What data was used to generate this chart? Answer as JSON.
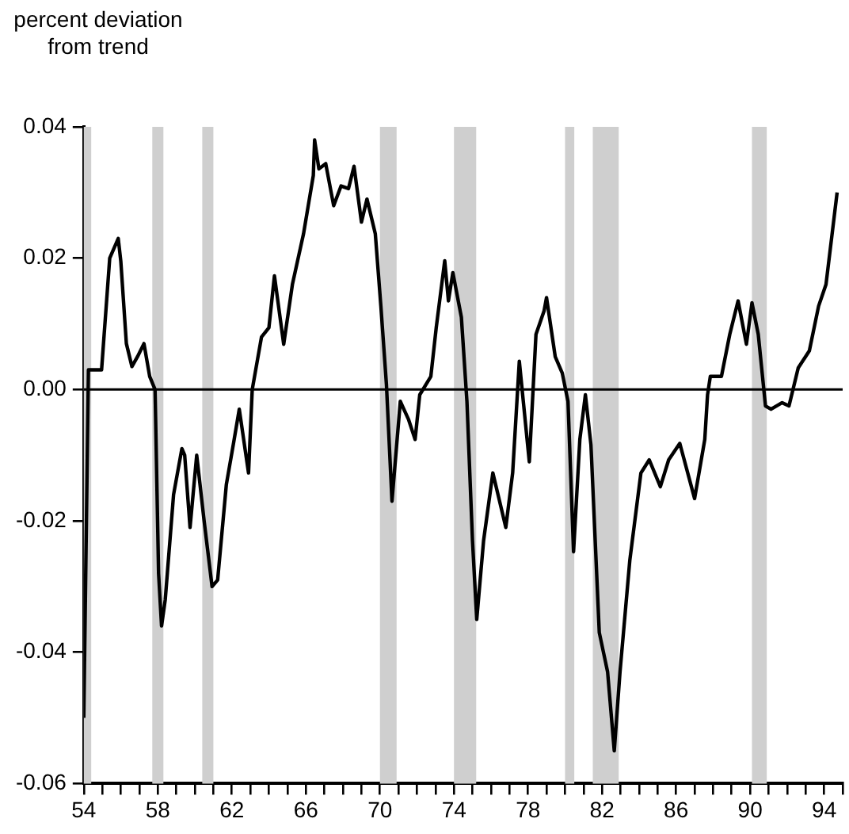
{
  "chart_data": {
    "type": "line",
    "ylabel": "percent deviation from trend",
    "x": [
      54.0,
      54.25,
      54.57,
      54.96,
      55.4,
      55.86,
      56.0,
      56.3,
      56.6,
      56.9,
      57.25,
      57.56,
      57.85,
      58.04,
      58.2,
      58.4,
      58.85,
      59.3,
      59.45,
      59.74,
      60.1,
      60.5,
      60.93,
      61.23,
      61.7,
      62.1,
      62.4,
      62.9,
      63.1,
      63.6,
      64.0,
      64.3,
      64.8,
      65.27,
      65.87,
      66.4,
      66.47,
      66.7,
      67.07,
      67.5,
      67.9,
      68.3,
      68.6,
      69.0,
      69.3,
      69.75,
      70.05,
      70.35,
      70.65,
      71.1,
      71.55,
      71.9,
      72.15,
      72.75,
      73.04,
      73.5,
      73.7,
      73.94,
      74.4,
      74.7,
      75.0,
      75.23,
      75.6,
      76.1,
      76.8,
      77.17,
      77.53,
      78.07,
      78.43,
      78.87,
      79.0,
      79.47,
      79.85,
      80.16,
      80.46,
      80.8,
      81.1,
      81.4,
      81.85,
      82.3,
      82.66,
      82.97,
      83.5,
      84.1,
      84.55,
      85.15,
      85.6,
      86.2,
      87.0,
      87.55,
      87.7,
      87.85,
      88.45,
      88.9,
      89.35,
      89.8,
      90.1,
      90.44,
      90.83,
      91.13,
      91.73,
      92.1,
      92.6,
      93.2,
      93.7,
      94.1,
      94.7
    ],
    "values": [
      -0.05,
      0.003,
      0.003,
      0.003,
      0.02,
      0.023,
      0.0195,
      0.007,
      0.0035,
      0.005,
      0.007,
      0.002,
      0.0,
      -0.028,
      -0.036,
      -0.032,
      -0.016,
      -0.009,
      -0.01,
      -0.021,
      -0.01,
      -0.02,
      -0.03,
      -0.029,
      -0.0145,
      -0.008,
      -0.003,
      -0.0127,
      0.0,
      0.008,
      0.0094,
      0.0173,
      0.0069,
      0.016,
      0.0237,
      0.0326,
      0.038,
      0.0336,
      0.0344,
      0.028,
      0.031,
      0.0306,
      0.034,
      0.0255,
      0.029,
      0.0237,
      0.0127,
      0.0008,
      -0.017,
      -0.0018,
      -0.0046,
      -0.0076,
      -0.0008,
      0.002,
      0.0094,
      0.0196,
      0.0135,
      0.0178,
      0.011,
      -0.0018,
      -0.023,
      -0.035,
      -0.023,
      -0.0127,
      -0.021,
      -0.0127,
      0.0043,
      -0.011,
      0.0084,
      0.012,
      0.014,
      0.005,
      0.0025,
      -0.0018,
      -0.0247,
      -0.0076,
      -0.0008,
      -0.0084,
      -0.037,
      -0.043,
      -0.055,
      -0.043,
      -0.026,
      -0.0127,
      -0.0107,
      -0.0148,
      -0.0107,
      -0.0082,
      -0.0166,
      -0.0076,
      -0.0008,
      0.002,
      0.002,
      0.0084,
      0.0135,
      0.0069,
      0.0132,
      0.0084,
      -0.0025,
      -0.003,
      -0.002,
      -0.0025,
      0.0033,
      0.0059,
      0.0127,
      0.016,
      0.03
    ],
    "color": "#000000",
    "marker": "none",
    "line_style": "solid",
    "grid": false,
    "legend": false,
    "xlim": [
      54,
      95
    ],
    "xticks": [
      {
        "value": 54,
        "label": "54"
      },
      {
        "value": 55,
        "label": null
      },
      {
        "value": 56,
        "label": null
      },
      {
        "value": 57,
        "label": null
      },
      {
        "value": 58,
        "label": "58"
      },
      {
        "value": 59,
        "label": null
      },
      {
        "value": 60,
        "label": null
      },
      {
        "value": 61,
        "label": null
      },
      {
        "value": 62,
        "label": "62"
      },
      {
        "value": 63,
        "label": null
      },
      {
        "value": 64,
        "label": null
      },
      {
        "value": 65,
        "label": null
      },
      {
        "value": 66,
        "label": "66"
      },
      {
        "value": 67,
        "label": null
      },
      {
        "value": 68,
        "label": null
      },
      {
        "value": 69,
        "label": null
      },
      {
        "value": 70,
        "label": "70"
      },
      {
        "value": 71,
        "label": null
      },
      {
        "value": 72,
        "label": null
      },
      {
        "value": 73,
        "label": null
      },
      {
        "value": 74,
        "label": "74"
      },
      {
        "value": 75,
        "label": null
      },
      {
        "value": 76,
        "label": null
      },
      {
        "value": 77,
        "label": null
      },
      {
        "value": 78,
        "label": "78"
      },
      {
        "value": 79,
        "label": null
      },
      {
        "value": 80,
        "label": null
      },
      {
        "value": 81,
        "label": null
      },
      {
        "value": 82,
        "label": "82"
      },
      {
        "value": 83,
        "label": null
      },
      {
        "value": 84,
        "label": null
      },
      {
        "value": 85,
        "label": null
      },
      {
        "value": 86,
        "label": "86"
      },
      {
        "value": 87,
        "label": null
      },
      {
        "value": 88,
        "label": null
      },
      {
        "value": 89,
        "label": null
      },
      {
        "value": 90,
        "label": "90"
      },
      {
        "value": 91,
        "label": null
      },
      {
        "value": 92,
        "label": null
      },
      {
        "value": 93,
        "label": null
      },
      {
        "value": 94,
        "label": "94"
      },
      {
        "value": 95,
        "label": null
      }
    ],
    "ylim": [
      -0.06,
      0.04
    ],
    "yticks": [
      {
        "value": -0.06,
        "label": "-0.06"
      },
      {
        "value": -0.04,
        "label": "-0.04"
      },
      {
        "value": -0.02,
        "label": "-0.02"
      },
      {
        "value": 0,
        "label": "0.00"
      },
      {
        "value": 0.02,
        "label": "0.02"
      },
      {
        "value": 0.04,
        "label": "0.04"
      }
    ],
    "ref_lines": [
      {
        "axis": "y",
        "value": 0,
        "color": "#000000",
        "line_style": "solid"
      }
    ],
    "bands": [
      {
        "axis": "x",
        "from": 54.0,
        "to": 54.4,
        "color": "#cfcfcf"
      },
      {
        "axis": "x",
        "from": 57.7,
        "to": 58.3,
        "color": "#cfcfcf"
      },
      {
        "axis": "x",
        "from": 60.4,
        "to": 61.0,
        "color": "#cfcfcf"
      },
      {
        "axis": "x",
        "from": 70.0,
        "to": 70.9,
        "color": "#cfcfcf"
      },
      {
        "axis": "x",
        "from": 74.0,
        "to": 75.2,
        "color": "#cfcfcf"
      },
      {
        "axis": "x",
        "from": 80.0,
        "to": 80.5,
        "color": "#cfcfcf"
      },
      {
        "axis": "x",
        "from": 81.5,
        "to": 82.9,
        "color": "#cfcfcf"
      },
      {
        "axis": "x",
        "from": 90.1,
        "to": 90.9,
        "color": "#cfcfcf"
      }
    ]
  }
}
